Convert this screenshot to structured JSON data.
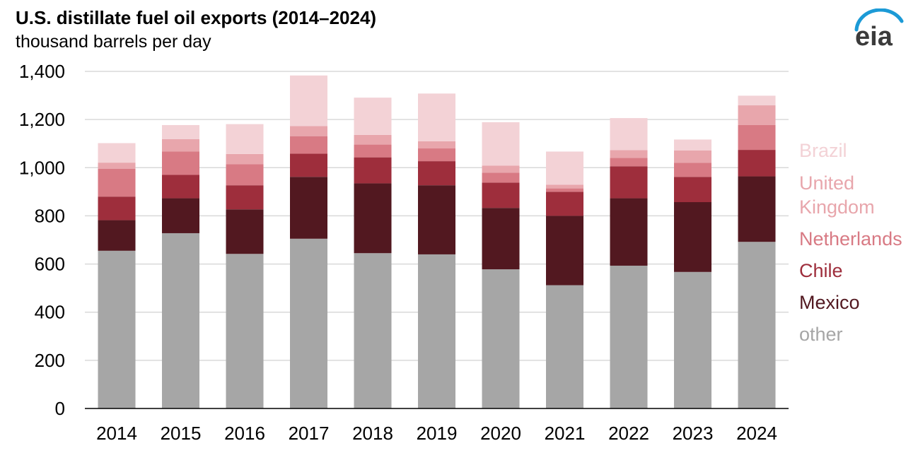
{
  "header": {
    "title": "U.S. distillate fuel oil exports (2014–2024)",
    "subtitle": "thousand barrels per day",
    "logo_text": "eia"
  },
  "colors": {
    "other": "#a6a6a6",
    "Mexico": "#521820",
    "Chile": "#9e2e3c",
    "Netherlands": "#d87a84",
    "United Kingdom": "#e8a6ac",
    "Brazil": "#f3d2d6",
    "logo_blue": "#1c9ad6",
    "grid": "#d9d9d9"
  },
  "chart_data": {
    "type": "bar",
    "stacked": true,
    "title": "U.S. distillate fuel oil exports (2014–2024)",
    "subtitle": "thousand barrels per day",
    "xlabel": "",
    "ylabel": "",
    "ylim": [
      0,
      1400
    ],
    "yticks": [
      0,
      200,
      400,
      600,
      800,
      1000,
      1200,
      1400
    ],
    "ytick_labels": [
      "0",
      "200",
      "400",
      "600",
      "800",
      "1,000",
      "1,200",
      "1,400"
    ],
    "grid": true,
    "legend_position": "right",
    "categories": [
      "2014",
      "2015",
      "2016",
      "2017",
      "2018",
      "2019",
      "2020",
      "2021",
      "2022",
      "2023",
      "2024"
    ],
    "series": [
      {
        "name": "other",
        "values": [
          655,
          728,
          642,
          705,
          645,
          640,
          578,
          512,
          593,
          567,
          692
        ]
      },
      {
        "name": "Mexico",
        "values": [
          127,
          145,
          185,
          257,
          290,
          287,
          255,
          288,
          280,
          290,
          272
        ]
      },
      {
        "name": "Chile",
        "values": [
          98,
          97,
          100,
          96,
          108,
          100,
          105,
          100,
          133,
          105,
          110
        ]
      },
      {
        "name": "Netherlands",
        "values": [
          115,
          97,
          87,
          73,
          53,
          53,
          41,
          14,
          35,
          58,
          103
        ]
      },
      {
        "name": "United Kingdom",
        "values": [
          26,
          52,
          43,
          42,
          40,
          30,
          30,
          15,
          32,
          52,
          82
        ]
      },
      {
        "name": "Brazil",
        "values": [
          81,
          58,
          124,
          210,
          155,
          198,
          180,
          138,
          133,
          45,
          40
        ]
      }
    ],
    "legend": [
      {
        "series": "Brazil",
        "lines": [
          "Brazil"
        ]
      },
      {
        "series": "United Kingdom",
        "lines": [
          "United",
          "Kingdom"
        ]
      },
      {
        "series": "Netherlands",
        "lines": [
          "Netherlands"
        ]
      },
      {
        "series": "Chile",
        "lines": [
          "Chile"
        ]
      },
      {
        "series": "Mexico",
        "lines": [
          "Mexico"
        ]
      },
      {
        "series": "other",
        "lines": [
          "other"
        ]
      }
    ]
  }
}
